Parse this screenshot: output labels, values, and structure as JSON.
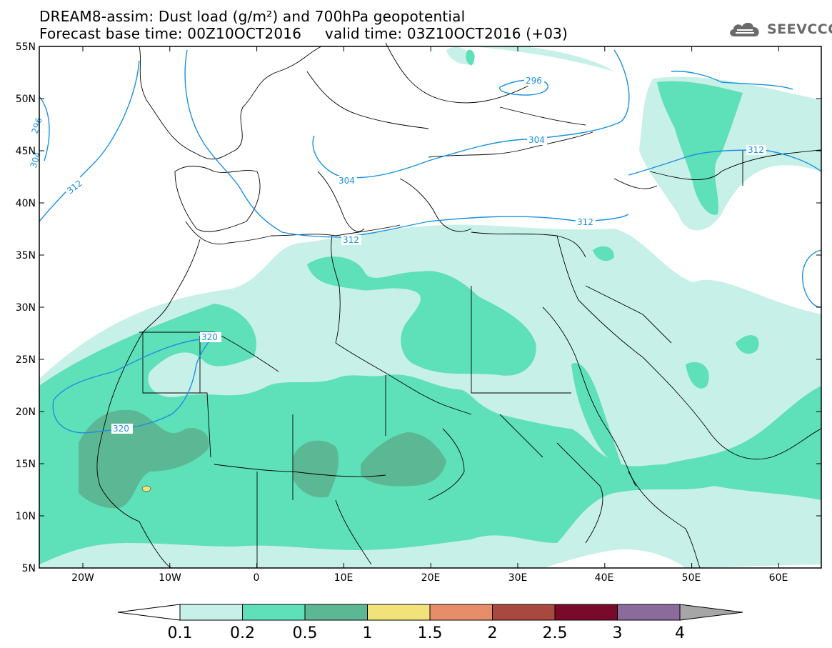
{
  "header": {
    "title_line1": "DREAM8-assim: Dust load (g/m²) and 700hPa geopotential",
    "title_line2": "Forecast base time: 00Z10OCT2016     valid time: 03Z10OCT2016 (+03)",
    "brand": "SEEVCCC",
    "brand_icon": "cloud-logo-icon"
  },
  "map": {
    "lat_labels": [
      "55N",
      "50N",
      "45N",
      "40N",
      "35N",
      "30N",
      "25N",
      "20N",
      "15N",
      "10N",
      "5N"
    ],
    "lon_labels": [
      "20W",
      "10W",
      "0",
      "10E",
      "20E",
      "30E",
      "40E",
      "50E",
      "60E"
    ],
    "contour_labels": [
      "296",
      "304",
      "312",
      "320",
      "296",
      "304",
      "312",
      "304",
      "312",
      "320",
      "312"
    ]
  },
  "colorbar": {
    "labels": [
      "0.1",
      "0.2",
      "0.5",
      "1",
      "1.5",
      "2",
      "2.5",
      "3",
      "4"
    ],
    "colors": [
      "#c7f0e9",
      "#5ee0b8",
      "#5cb894",
      "#f2e27a",
      "#e88d6a",
      "#a8483e",
      "#7a0a2a",
      "#8b6a9c",
      "#a6a6a6"
    ],
    "left_arrow_color": "#ffffff"
  },
  "colors": {
    "contour": "#1a90e0",
    "borders": "#000000",
    "frame": "#000000"
  }
}
